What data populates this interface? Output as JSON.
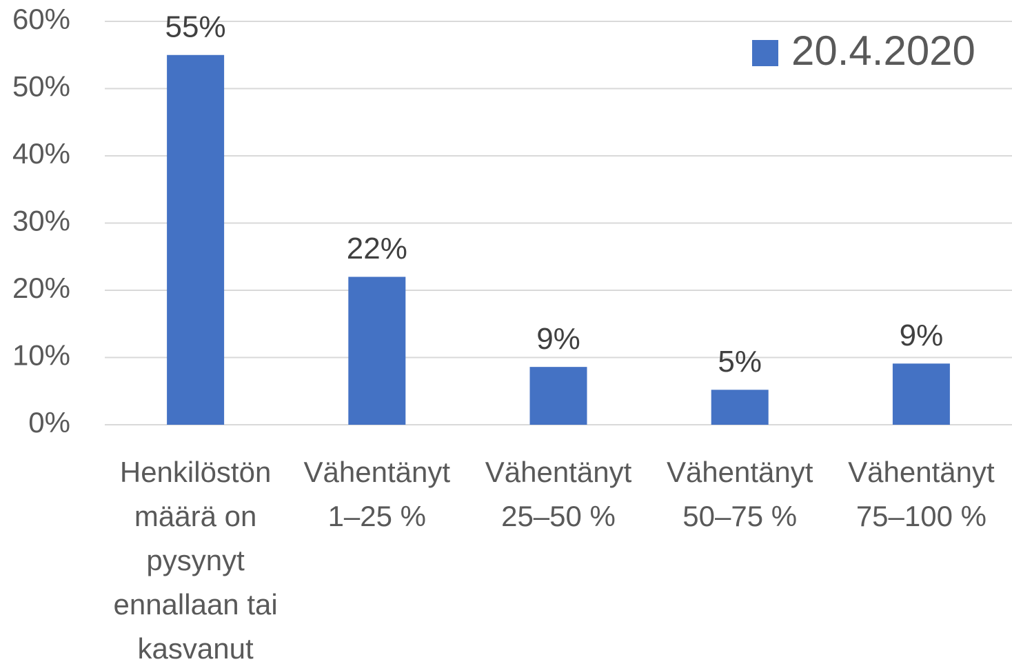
{
  "chart_data": {
    "type": "bar",
    "categories": [
      "Henkilöstön määrä on pysynyt ennallaan tai kasvanut",
      "Vähentänyt 1–25 %",
      "Vähentänyt 25–50 %",
      "Vähentänyt 50–75 %",
      "Vähentänyt 75–100 %"
    ],
    "series": [
      {
        "name": "20.4.2020",
        "color": "#4472c4",
        "values": [
          55,
          22,
          8.6,
          5.2,
          9.1
        ],
        "value_labels": [
          "55%",
          "22%",
          "9%",
          "5%",
          "9%"
        ]
      }
    ],
    "ylim": [
      0,
      60
    ],
    "yticks": [
      {
        "value": 0,
        "label": "0%"
      },
      {
        "value": 10,
        "label": "10%"
      },
      {
        "value": 20,
        "label": "20%"
      },
      {
        "value": 30,
        "label": "30%"
      },
      {
        "value": 40,
        "label": "40%"
      },
      {
        "value": 50,
        "label": "50%"
      },
      {
        "value": 60,
        "label": "60%"
      }
    ],
    "grid": true,
    "legend": "top-right"
  }
}
